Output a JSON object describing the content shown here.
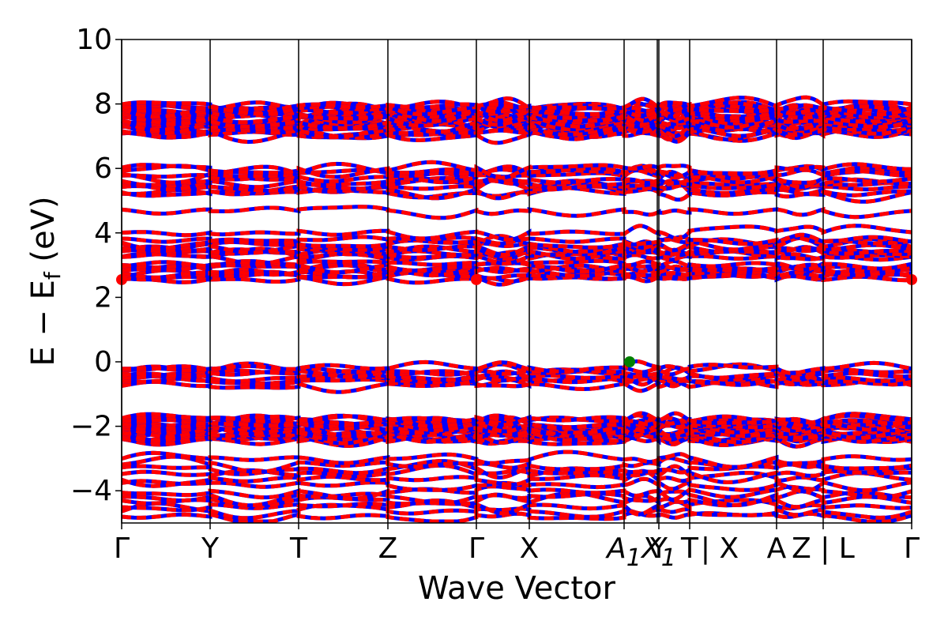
{
  "chart_data": {
    "type": "line",
    "xlabel": "Wave Vector",
    "ylabel": "E − E",
    "ylabel_sub": "f",
    "ylabel_unit": " (eV)",
    "ylim": [
      -5,
      10
    ],
    "yticks": [
      "−4",
      "−2",
      "0",
      "2",
      "4",
      "6",
      "8",
      "10"
    ],
    "ytick_values": [
      -4,
      -2,
      0,
      2,
      4,
      6,
      8,
      10
    ],
    "grid": false,
    "colors": {
      "spin_a": "#ff0000",
      "spin_b": "#0000ff",
      "vbm": "#008000",
      "cbm": "#ff0000",
      "axis": "#000000"
    },
    "kpath_labels": [
      {
        "text": "Γ",
        "k": 0.0
      },
      {
        "text": "Y",
        "k": 0.112
      },
      {
        "text": "T",
        "k": 0.224
      },
      {
        "text": "Z",
        "k": 0.337
      },
      {
        "text": "Γ",
        "k": 0.449
      },
      {
        "text": "X",
        "k": 0.516
      },
      {
        "text": "A",
        "sub": "1",
        "k": 0.636,
        "italic": true
      },
      {
        "text": "Y",
        "k": 0.68
      },
      {
        "text": "X",
        "sub": "1",
        "k": 0.68,
        "italic": true
      },
      {
        "text": "T",
        "k": 0.719
      },
      {
        "text": "| X",
        "k": 0.757
      },
      {
        "text": "A",
        "k": 0.829
      },
      {
        "text": "Z | L",
        "k": 0.888
      },
      {
        "text": "Γ",
        "k": 1.0
      }
    ],
    "kpath_segments": [
      0.0,
      0.112,
      0.224,
      0.337,
      0.449,
      0.516,
      0.636,
      0.68,
      0.719,
      0.829,
      0.888,
      1.0
    ],
    "path_break": 0.68,
    "valence_band_max": {
      "k": 0.643,
      "energy": 0.0
    },
    "conduction_band_min": [
      {
        "k": 0.0,
        "energy": 2.55
      },
      {
        "k": 0.449,
        "energy": 2.55
      },
      {
        "k": 1.0,
        "energy": 2.55
      }
    ],
    "band_groups": [
      {
        "name": "",
        "base": -4.4,
        "count": 6,
        "spread": 0.35
      },
      {
        "name": "",
        "base": -3.4,
        "count": 6,
        "spread": 0.35
      },
      {
        "name": "",
        "base": -2.1,
        "count": 18,
        "spread": 0.3
      },
      {
        "name": "",
        "base": -0.45,
        "count": 8,
        "spread": 0.25
      },
      {
        "name": "",
        "base": 2.8,
        "count": 8,
        "spread": 0.2
      },
      {
        "name": "",
        "base": 3.5,
        "count": 8,
        "spread": 0.25
      },
      {
        "name": "",
        "base": 4.35,
        "count": 2,
        "spread": 0.3
      },
      {
        "name": "",
        "base": 5.6,
        "count": 10,
        "spread": 0.35
      },
      {
        "name": "",
        "base": 7.5,
        "count": 26,
        "spread": 0.4
      }
    ]
  }
}
